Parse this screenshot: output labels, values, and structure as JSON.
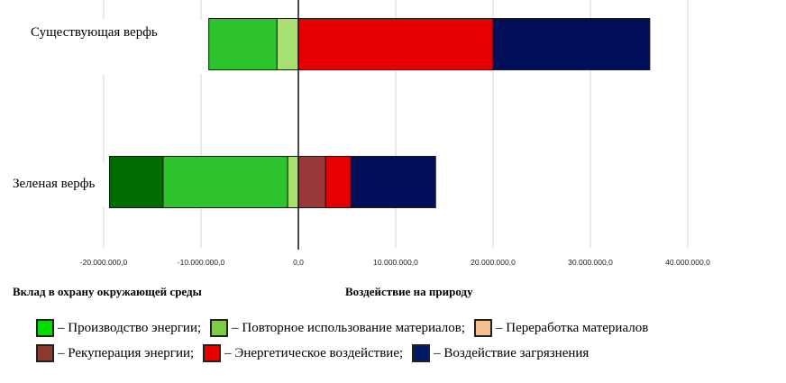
{
  "chart_data": {
    "type": "bar",
    "orientation": "horizontal",
    "stacked": true,
    "categories": [
      "Существующая верфь",
      "Зеленая верфь"
    ],
    "series": [
      {
        "name": "Повторное использование материалов",
        "color": "#a8e070",
        "values": [
          -2200000,
          -1100000
        ]
      },
      {
        "name": "Производство энергии",
        "color": "#2cc32c",
        "values": [
          -7000000,
          -12800000
        ]
      },
      {
        "name": "Рекуперация энергии",
        "color": "#006b00",
        "values": [
          0,
          -5500000
        ]
      },
      {
        "name": "Рекуперация энергии",
        "color": "#983838",
        "values": [
          0,
          2800000
        ]
      },
      {
        "name": "Энергетическое воздействие",
        "color": "#e40000",
        "values": [
          20000000,
          2600000
        ]
      },
      {
        "name": "Воздействие загрязнения",
        "color": "#000f58",
        "values": [
          16100000,
          8700000
        ]
      }
    ],
    "x_ticks": [
      -20000000,
      -10000000,
      0,
      10000000,
      20000000,
      30000000,
      40000000
    ],
    "x_tick_labels": [
      "-20.000.000,0",
      "-10.000.000,0",
      "0,0",
      "10.000.000,0",
      "20.000.000,0",
      "30.000.000,0",
      "40.000.000,0"
    ],
    "xlim": [
      -20000000,
      40000000
    ],
    "grid": true,
    "xlabel_left": "Вклад в охрану окружающей среды",
    "xlabel_right": "Воздействие на природу",
    "legend_placement": "bottom"
  },
  "legend": {
    "rows": [
      [
        {
          "label": "– Производство энергии;",
          "color": "#00dd00"
        },
        {
          "label": "– Повторное использование материалов;",
          "color": "#7ecb4a"
        },
        {
          "label": "– Переработка  материалов",
          "color": "#f6c08e"
        }
      ],
      [
        {
          "label": "– Рекуперация  энергии;",
          "color": "#8b3a30"
        },
        {
          "label": "– Энергетическое воздействие;",
          "color": "#e80000"
        },
        {
          "label": "– Воздействие загрязнения",
          "color": "#001a66"
        }
      ]
    ]
  }
}
